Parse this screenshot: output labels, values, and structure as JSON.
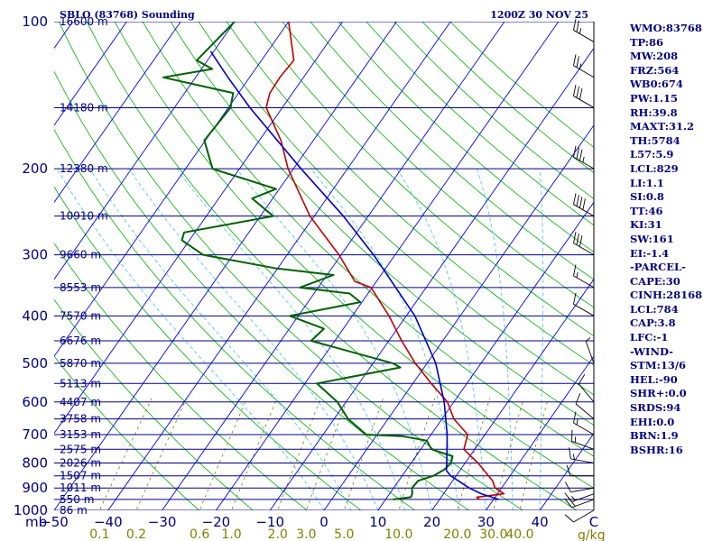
{
  "header": {
    "station": "SBLO (83768) Sounding",
    "datetime": "1200Z 30 NOV 25"
  },
  "indices": [
    "WMO:83768",
    "TP:86",
    "MW:208",
    "FRZ:564",
    "WB0:674",
    "PW:1.15",
    "RH:39.8",
    "MAXT:31.2",
    "TH:5784",
    "L57:5.9",
    "LCL:829",
    "LI:1.1",
    "SI:0.8",
    "TT:46",
    "KI:31",
    "SW:161",
    "EI:-1.4",
    "-PARCEL-",
    "CAPE:30",
    "CINH:28168",
    "LCL:784",
    "CAP:3.8",
    "LFC:-1",
    "-WIND-",
    "STM:13/6",
    "HEL:-90",
    "SHR+:0.0",
    "SRDS:94",
    "EHI:0.0",
    "BRN:1.9",
    "BSHR:16"
  ],
  "colors": {
    "isobar": "#000080",
    "isotherm": "#0000ff",
    "dry_adiabat": "#00b000",
    "moist_adiabat": "#56c8e8",
    "mixing_ratio": "#808000",
    "temperature": "#c00000",
    "dewpoint": "#006000",
    "parcel": "#0000c0",
    "wind": "#000000"
  },
  "chart_data": {
    "type": "skew-t",
    "title": "SBLO (83768) Sounding",
    "pressure_range": [
      1000,
      100
    ],
    "temperature_range": [
      -50,
      50
    ],
    "pressure_unit": "mb",
    "mixing_unit": "g/kg",
    "pressure_levels": [
      100,
      200,
      300,
      400,
      500,
      600,
      700,
      800,
      900,
      1000
    ],
    "isobar_levels": [
      100,
      150,
      200,
      250,
      300,
      350,
      400,
      450,
      500,
      550,
      600,
      650,
      700,
      750,
      800,
      850,
      900,
      950,
      1000
    ],
    "temperature_ticks": [
      -50,
      -40,
      -30,
      -20,
      -10,
      0,
      10,
      20,
      30,
      40,
      50
    ],
    "temperature_tick_labels": [
      "−50",
      "−40",
      "−30",
      "−20",
      "−10",
      "0",
      "10",
      "20",
      "30",
      "40",
      "C"
    ],
    "isotherms": [
      -120,
      -110,
      -100,
      -90,
      -80,
      -70,
      -60,
      -50,
      -40,
      -30,
      -20,
      -10,
      0,
      10,
      20,
      30,
      40,
      50
    ],
    "dry_adiabats_K": [
      250,
      260,
      270,
      280,
      290,
      300,
      310,
      320,
      330,
      340,
      350,
      360,
      370,
      380,
      390,
      400,
      410,
      420,
      430,
      440,
      450
    ],
    "moist_adiabats_C": [
      0,
      5,
      10,
      15,
      20,
      25,
      30,
      35,
      40
    ],
    "mixing_lines": [
      0.1,
      0.2,
      0.6,
      1.0,
      2.0,
      3.0,
      5.0,
      10.0,
      20.0,
      30.0,
      40.0
    ],
    "mixing_labels": [
      "0.1",
      "0.2",
      "0.6",
      "1.0",
      "2.0",
      "3.0",
      "5.0",
      "10.0",
      "20.0",
      "30.0",
      "40.0"
    ],
    "heights": [
      {
        "p": 100,
        "label": "16600 m"
      },
      {
        "p": 150,
        "label": "14180 m"
      },
      {
        "p": 200,
        "label": "12380 m"
      },
      {
        "p": 250,
        "label": "10910 m"
      },
      {
        "p": 300,
        "label": "9660 m"
      },
      {
        "p": 350,
        "label": "8553 m"
      },
      {
        "p": 400,
        "label": "7570 m"
      },
      {
        "p": 450,
        "label": "6676 m"
      },
      {
        "p": 500,
        "label": "5870 m"
      },
      {
        "p": 550,
        "label": "5113 m"
      },
      {
        "p": 600,
        "label": "4407 m"
      },
      {
        "p": 650,
        "label": "3758 m"
      },
      {
        "p": 700,
        "label": "3153 m"
      },
      {
        "p": 750,
        "label": "2575 m"
      },
      {
        "p": 800,
        "label": "2026 m"
      },
      {
        "p": 850,
        "label": "1507 m"
      },
      {
        "p": 900,
        "label": "1011 m"
      },
      {
        "p": 950,
        "label": "550 m"
      },
      {
        "p": 1000,
        "label": "86 m"
      }
    ],
    "series": [
      {
        "name": "Temperature",
        "points": [
          [
            950,
            27.4
          ],
          [
            940,
            26.6
          ],
          [
            925,
            31.2
          ],
          [
            900,
            28.8
          ],
          [
            870,
            27.4
          ],
          [
            850,
            26.0
          ],
          [
            800,
            22.4
          ],
          [
            775,
            20.2
          ],
          [
            750,
            18.0
          ],
          [
            700,
            16.8
          ],
          [
            650,
            12.2
          ],
          [
            600,
            8.8
          ],
          [
            550,
            3.4
          ],
          [
            500,
            -2.2
          ],
          [
            450,
            -7.6
          ],
          [
            400,
            -13.2
          ],
          [
            350,
            -20.2
          ],
          [
            340,
            -24.0
          ],
          [
            300,
            -30.4
          ],
          [
            250,
            -40.8
          ],
          [
            200,
            -51.0
          ],
          [
            175,
            -56.0
          ],
          [
            150,
            -63.0
          ],
          [
            140,
            -64.2
          ],
          [
            130,
            -64.4
          ],
          [
            120,
            -64.0
          ],
          [
            100,
            -70.0
          ]
        ]
      },
      {
        "name": "Dewpoint",
        "points": [
          [
            950,
            11.4
          ],
          [
            940,
            14.4
          ],
          [
            925,
            14.2
          ],
          [
            900,
            13.4
          ],
          [
            870,
            13.6
          ],
          [
            850,
            15.8
          ],
          [
            825,
            17.0
          ],
          [
            800,
            17.4
          ],
          [
            775,
            16.8
          ],
          [
            750,
            12.0
          ],
          [
            720,
            10.0
          ],
          [
            705,
            4.8
          ],
          [
            700,
            -2.0
          ],
          [
            650,
            -7.4
          ],
          [
            600,
            -11.6
          ],
          [
            550,
            -17.8
          ],
          [
            510,
            -4.4
          ],
          [
            500,
            -6.4
          ],
          [
            450,
            -24.4
          ],
          [
            425,
            -23.6
          ],
          [
            400,
            -31.6
          ],
          [
            375,
            -20.3
          ],
          [
            360,
            -23.4
          ],
          [
            350,
            -33.4
          ],
          [
            330,
            -28.8
          ],
          [
            320,
            -40.1
          ],
          [
            300,
            -55.6
          ],
          [
            280,
            -61.4
          ],
          [
            270,
            -62.0
          ],
          [
            250,
            -47.6
          ],
          [
            230,
            -53.8
          ],
          [
            220,
            -50.6
          ],
          [
            200,
            -65.0
          ],
          [
            175,
            -70.2
          ],
          [
            150,
            -69.6
          ],
          [
            140,
            -71.0
          ],
          [
            130,
            -86.0
          ],
          [
            125,
            -78.0
          ],
          [
            120,
            -82.0
          ],
          [
            100,
            -80.0
          ]
        ]
      },
      {
        "name": "Parcel",
        "points": [
          [
            950,
            31.0
          ],
          [
            925,
            27.0
          ],
          [
            900,
            24.0
          ],
          [
            850,
            19.0
          ],
          [
            829,
            17.5
          ],
          [
            800,
            16.6
          ],
          [
            700,
            13.0
          ],
          [
            600,
            8.2
          ],
          [
            500,
            1.6
          ],
          [
            400,
            -8.4
          ],
          [
            300,
            -24.0
          ],
          [
            250,
            -34.6
          ],
          [
            200,
            -48.6
          ],
          [
            150,
            -66.0
          ],
          [
            130,
            -74.0
          ],
          [
            115,
            -80.6
          ]
        ]
      }
    ],
    "wind_barbs": [
      {
        "p": 1000,
        "dir": 240,
        "spd": 10
      },
      {
        "p": 950,
        "dir": 250,
        "spd": 20
      },
      {
        "p": 925,
        "dir": 250,
        "spd": 15
      },
      {
        "p": 900,
        "dir": 260,
        "spd": 10
      },
      {
        "p": 850,
        "dir": 270,
        "spd": 10
      },
      {
        "p": 800,
        "dir": 280,
        "spd": 15
      },
      {
        "p": 750,
        "dir": 290,
        "spd": 15
      },
      {
        "p": 700,
        "dir": 300,
        "spd": 15
      },
      {
        "p": 650,
        "dir": 310,
        "spd": 10
      },
      {
        "p": 600,
        "dir": 320,
        "spd": 10
      },
      {
        "p": 500,
        "dir": 340,
        "spd": 5
      },
      {
        "p": 400,
        "dir": 300,
        "spd": 10
      },
      {
        "p": 350,
        "dir": 300,
        "spd": 15
      },
      {
        "p": 300,
        "dir": 300,
        "spd": 30
      },
      {
        "p": 250,
        "dir": 300,
        "spd": 40
      },
      {
        "p": 200,
        "dir": 300,
        "spd": 35
      },
      {
        "p": 150,
        "dir": 300,
        "spd": 30
      },
      {
        "p": 130,
        "dir": 300,
        "spd": 25
      },
      {
        "p": 110,
        "dir": 300,
        "spd": 25
      }
    ]
  }
}
